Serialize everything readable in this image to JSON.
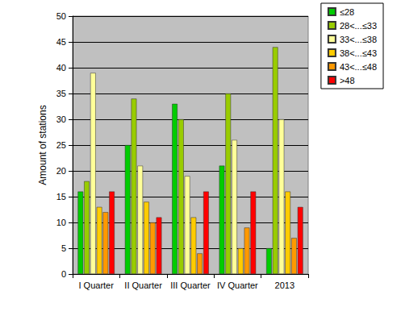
{
  "chart_data": {
    "type": "bar",
    "ylabel": "Amount of stations",
    "categories": [
      "I Quarter",
      "II Quarter",
      "III Quarter",
      "IV Quarter",
      "2013"
    ],
    "series": [
      {
        "name": "≤28",
        "color": "#00cc00",
        "values": [
          16,
          25,
          33,
          21,
          5
        ]
      },
      {
        "name": "28<...≤33",
        "color": "#99cc00",
        "values": [
          18,
          34,
          30,
          35,
          44
        ]
      },
      {
        "name": "33<...≤38",
        "color": "#ffff99",
        "values": [
          39,
          21,
          19,
          26,
          30
        ]
      },
      {
        "name": "38<...≤43",
        "color": "#ffcc00",
        "values": [
          13,
          14,
          11,
          5,
          16
        ]
      },
      {
        "name": "43<...≤48",
        "color": "#ff9900",
        "values": [
          12,
          10,
          4,
          9,
          7
        ]
      },
      {
        "name": ">48",
        "color": "#ff0000",
        "values": [
          16,
          11,
          16,
          16,
          13
        ]
      }
    ],
    "ylim": [
      0,
      50
    ],
    "yticks": [
      0,
      5,
      10,
      15,
      20,
      25,
      30,
      35,
      40,
      45,
      50
    ],
    "grid": true,
    "legend": "upper right"
  }
}
